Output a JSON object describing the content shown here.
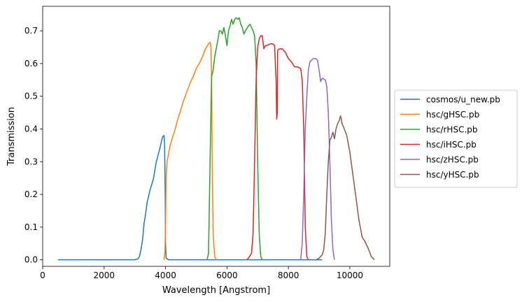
{
  "chart_data": {
    "type": "line",
    "title": "",
    "xlabel": "Wavelength [Angstrom]",
    "ylabel": "Transmission",
    "xlim": [
      0,
      11300
    ],
    "ylim": [
      -0.02,
      0.775
    ],
    "xticks": [
      0,
      2000,
      4000,
      6000,
      8000,
      10000
    ],
    "xtick_labels": [
      "0",
      "2000",
      "4000",
      "6000",
      "8000",
      "10000"
    ],
    "yticks": [
      0.0,
      0.1,
      0.2,
      0.3,
      0.4,
      0.5,
      0.6,
      0.7
    ],
    "ytick_labels": [
      "0.0",
      "0.1",
      "0.2",
      "0.3",
      "0.4",
      "0.5",
      "0.6",
      "0.7"
    ],
    "grid": false,
    "legend_position": "outside-right",
    "series": [
      {
        "name": "cosmos/u_new.pb",
        "color": "#1f77b4",
        "points": [
          [
            500,
            0
          ],
          [
            3000,
            0
          ],
          [
            3100,
            0.003
          ],
          [
            3150,
            0.01
          ],
          [
            3200,
            0.03
          ],
          [
            3250,
            0.06
          ],
          [
            3300,
            0.11
          ],
          [
            3350,
            0.14
          ],
          [
            3400,
            0.175
          ],
          [
            3500,
            0.215
          ],
          [
            3600,
            0.245
          ],
          [
            3700,
            0.3
          ],
          [
            3800,
            0.335
          ],
          [
            3900,
            0.375
          ],
          [
            3950,
            0.38
          ],
          [
            3970,
            0.35
          ],
          [
            3990,
            0.2
          ],
          [
            4000,
            0.05
          ],
          [
            4020,
            0.005
          ],
          [
            4100,
            0
          ],
          [
            9100,
            0
          ]
        ]
      },
      {
        "name": "hsc/gHSC.pb",
        "color": "#ff7f0e",
        "points": [
          [
            3950,
            0
          ],
          [
            3980,
            0.02
          ],
          [
            4000,
            0.1
          ],
          [
            4020,
            0.25
          ],
          [
            4050,
            0.3
          ],
          [
            4150,
            0.35
          ],
          [
            4300,
            0.395
          ],
          [
            4400,
            0.43
          ],
          [
            4500,
            0.46
          ],
          [
            4600,
            0.49
          ],
          [
            4700,
            0.515
          ],
          [
            4800,
            0.54
          ],
          [
            4900,
            0.56
          ],
          [
            5000,
            0.585
          ],
          [
            5100,
            0.6
          ],
          [
            5200,
            0.62
          ],
          [
            5300,
            0.645
          ],
          [
            5400,
            0.66
          ],
          [
            5450,
            0.665
          ],
          [
            5480,
            0.65
          ],
          [
            5500,
            0.55
          ],
          [
            5520,
            0.3
          ],
          [
            5550,
            0.08
          ],
          [
            5600,
            0.01
          ],
          [
            5650,
            0
          ]
        ]
      },
      {
        "name": "hsc/rHSC.pb",
        "color": "#2ca02c",
        "points": [
          [
            5350,
            0
          ],
          [
            5400,
            0.02
          ],
          [
            5450,
            0.3
          ],
          [
            5500,
            0.56
          ],
          [
            5550,
            0.58
          ],
          [
            5600,
            0.62
          ],
          [
            5700,
            0.67
          ],
          [
            5750,
            0.7
          ],
          [
            5800,
            0.7
          ],
          [
            5850,
            0.69
          ],
          [
            5900,
            0.71
          ],
          [
            5950,
            0.685
          ],
          [
            6000,
            0.655
          ],
          [
            6050,
            0.7
          ],
          [
            6100,
            0.715
          ],
          [
            6150,
            0.735
          ],
          [
            6200,
            0.72
          ],
          [
            6250,
            0.735
          ],
          [
            6300,
            0.74
          ],
          [
            6350,
            0.735
          ],
          [
            6400,
            0.74
          ],
          [
            6450,
            0.72
          ],
          [
            6500,
            0.71
          ],
          [
            6550,
            0.69
          ],
          [
            6600,
            0.7
          ],
          [
            6700,
            0.715
          ],
          [
            6750,
            0.72
          ],
          [
            6800,
            0.71
          ],
          [
            6850,
            0.7
          ],
          [
            6900,
            0.685
          ],
          [
            6950,
            0.6
          ],
          [
            7000,
            0.3
          ],
          [
            7050,
            0.08
          ],
          [
            7100,
            0.01
          ],
          [
            7150,
            0
          ]
        ]
      },
      {
        "name": "hsc/iHSC.pb",
        "color": "#d62728",
        "points": [
          [
            6650,
            0
          ],
          [
            6700,
            0.005
          ],
          [
            6800,
            0.02
          ],
          [
            6850,
            0.08
          ],
          [
            6900,
            0.3
          ],
          [
            6950,
            0.55
          ],
          [
            7000,
            0.65
          ],
          [
            7050,
            0.675
          ],
          [
            7100,
            0.685
          ],
          [
            7150,
            0.685
          ],
          [
            7200,
            0.645
          ],
          [
            7250,
            0.655
          ],
          [
            7300,
            0.655
          ],
          [
            7400,
            0.66
          ],
          [
            7500,
            0.66
          ],
          [
            7550,
            0.655
          ],
          [
            7600,
            0.55
          ],
          [
            7620,
            0.43
          ],
          [
            7640,
            0.45
          ],
          [
            7650,
            0.64
          ],
          [
            7700,
            0.645
          ],
          [
            7800,
            0.645
          ],
          [
            7900,
            0.635
          ],
          [
            8000,
            0.615
          ],
          [
            8100,
            0.605
          ],
          [
            8200,
            0.59
          ],
          [
            8300,
            0.59
          ],
          [
            8400,
            0.585
          ],
          [
            8450,
            0.55
          ],
          [
            8500,
            0.4
          ],
          [
            8550,
            0.1
          ],
          [
            8600,
            0.01
          ],
          [
            8650,
            0
          ]
        ]
      },
      {
        "name": "hsc/zHSC.pb",
        "color": "#9467bd",
        "points": [
          [
            8400,
            0
          ],
          [
            8450,
            0.05
          ],
          [
            8500,
            0.2
          ],
          [
            8550,
            0.4
          ],
          [
            8600,
            0.5
          ],
          [
            8650,
            0.58
          ],
          [
            8700,
            0.605
          ],
          [
            8800,
            0.615
          ],
          [
            8900,
            0.615
          ],
          [
            8950,
            0.61
          ],
          [
            9000,
            0.58
          ],
          [
            9050,
            0.545
          ],
          [
            9100,
            0.555
          ],
          [
            9200,
            0.55
          ],
          [
            9250,
            0.53
          ],
          [
            9300,
            0.45
          ],
          [
            9350,
            0.3
          ],
          [
            9400,
            0.12
          ],
          [
            9450,
            0.03
          ],
          [
            9500,
            0
          ]
        ]
      },
      {
        "name": "hsc/yHSC.pb",
        "color": "#8c564b",
        "points": [
          [
            8900,
            0
          ],
          [
            9000,
            0.005
          ],
          [
            9100,
            0.015
          ],
          [
            9150,
            0.03
          ],
          [
            9200,
            0.08
          ],
          [
            9250,
            0.2
          ],
          [
            9300,
            0.3
          ],
          [
            9350,
            0.365
          ],
          [
            9400,
            0.375
          ],
          [
            9450,
            0.39
          ],
          [
            9500,
            0.37
          ],
          [
            9550,
            0.4
          ],
          [
            9600,
            0.415
          ],
          [
            9650,
            0.425
          ],
          [
            9700,
            0.44
          ],
          [
            9750,
            0.415
          ],
          [
            9800,
            0.405
          ],
          [
            9900,
            0.38
          ],
          [
            10000,
            0.33
          ],
          [
            10100,
            0.26
          ],
          [
            10200,
            0.19
          ],
          [
            10300,
            0.12
          ],
          [
            10400,
            0.07
          ],
          [
            10500,
            0.055
          ],
          [
            10600,
            0.035
          ],
          [
            10700,
            0.01
          ],
          [
            10800,
            0
          ]
        ]
      }
    ]
  }
}
